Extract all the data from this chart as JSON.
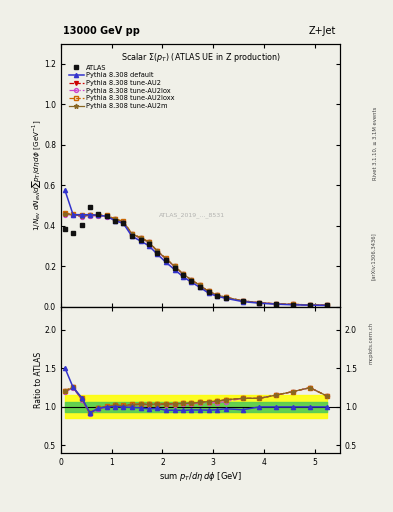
{
  "title_top": "13000 GeV pp",
  "title_right": "Z+Jet",
  "panel_title": "Scalar Σ(p_T​) (ATLAS UE in Z production)",
  "watermark": "ATLAS_2019_..._8531",
  "xlabel": "sum p_T/dη dϕ [GeV]",
  "ylabel": "1/N_ev dN_ev/dsum p_T/dη dϕ  [GeV⁻¹]",
  "ylabel_ratio": "Ratio to ATLAS",
  "right_label1": "Rivet 3.1.10, ≥ 3.1M events",
  "right_label2": "[arXiv:1306.3436]",
  "right_label3": "mcplots.cern.ch",
  "xlim": [
    0,
    5.5
  ],
  "ylim_main": [
    0,
    1.3
  ],
  "ylim_ratio": [
    0.4,
    2.3
  ],
  "atlas_x": [
    0.08,
    0.24,
    0.41,
    0.57,
    0.74,
    0.9,
    1.07,
    1.23,
    1.4,
    1.57,
    1.73,
    1.9,
    2.07,
    2.24,
    2.41,
    2.57,
    2.74,
    2.91,
    3.08,
    3.25,
    3.58,
    3.91,
    4.24,
    4.58,
    4.91,
    5.24
  ],
  "atlas_y": [
    0.382,
    0.363,
    0.406,
    0.492,
    0.46,
    0.447,
    0.423,
    0.413,
    0.35,
    0.329,
    0.31,
    0.265,
    0.23,
    0.192,
    0.155,
    0.127,
    0.1,
    0.071,
    0.054,
    0.043,
    0.027,
    0.018,
    0.013,
    0.01,
    0.008,
    0.007
  ],
  "default_y": [
    0.575,
    0.455,
    0.455,
    0.455,
    0.452,
    0.447,
    0.425,
    0.412,
    0.348,
    0.325,
    0.302,
    0.26,
    0.22,
    0.184,
    0.148,
    0.122,
    0.096,
    0.068,
    0.052,
    0.042,
    0.026,
    0.018,
    0.013,
    0.01,
    0.008,
    0.007
  ],
  "au2_y": [
    0.46,
    0.455,
    0.448,
    0.452,
    0.452,
    0.448,
    0.432,
    0.42,
    0.36,
    0.34,
    0.32,
    0.275,
    0.238,
    0.2,
    0.162,
    0.133,
    0.106,
    0.076,
    0.058,
    0.047,
    0.03,
    0.02,
    0.015,
    0.012,
    0.01,
    0.008
  ],
  "au2lox_y": [
    0.455,
    0.453,
    0.445,
    0.449,
    0.449,
    0.445,
    0.429,
    0.417,
    0.357,
    0.338,
    0.318,
    0.273,
    0.236,
    0.198,
    0.16,
    0.132,
    0.105,
    0.075,
    0.057,
    0.046,
    0.03,
    0.02,
    0.015,
    0.012,
    0.01,
    0.008
  ],
  "au2loxx_y": [
    0.463,
    0.458,
    0.451,
    0.455,
    0.455,
    0.451,
    0.435,
    0.422,
    0.362,
    0.342,
    0.322,
    0.276,
    0.239,
    0.2,
    0.162,
    0.133,
    0.106,
    0.076,
    0.058,
    0.047,
    0.03,
    0.02,
    0.015,
    0.012,
    0.01,
    0.008
  ],
  "au2m_y": [
    0.46,
    0.455,
    0.448,
    0.452,
    0.452,
    0.448,
    0.432,
    0.42,
    0.36,
    0.34,
    0.32,
    0.275,
    0.238,
    0.2,
    0.162,
    0.133,
    0.106,
    0.076,
    0.058,
    0.047,
    0.03,
    0.02,
    0.015,
    0.012,
    0.01,
    0.008
  ],
  "color_atlas": "#111111",
  "color_default": "#3333cc",
  "color_au2": "#cc0000",
  "color_au2lox": "#cc44cc",
  "color_au2loxx": "#cc6600",
  "color_au2m": "#886622",
  "ratio_green_inner": 0.07,
  "ratio_yellow_outer": 0.15,
  "bg_color": "#f0f0e8"
}
